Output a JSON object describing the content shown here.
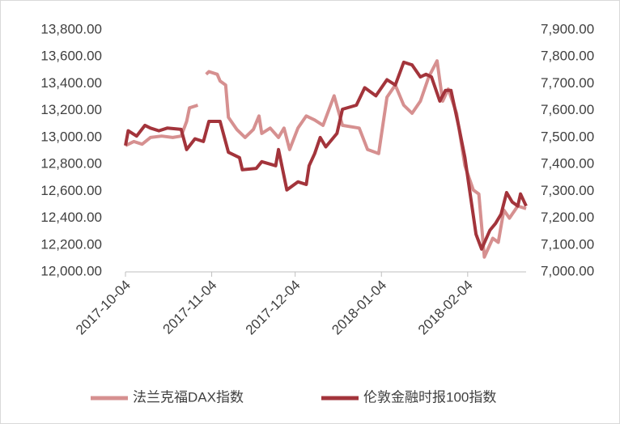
{
  "chart_data": {
    "type": "line",
    "xlim": [
      "2017-10-04",
      "2018-02-25"
    ],
    "xticks": [
      "2017-10-04",
      "2017-11-04",
      "2017-12-04",
      "2018-01-04",
      "2018-02-04"
    ],
    "ylim": [
      12000,
      13800
    ],
    "yticks": [
      {
        "value": 12000,
        "label": "12,000.00"
      },
      {
        "value": 12200,
        "label": "12,200.00"
      },
      {
        "value": 12400,
        "label": "12,400.00"
      },
      {
        "value": 12600,
        "label": "12,600.00"
      },
      {
        "value": 12800,
        "label": "12,800.00"
      },
      {
        "value": 13000,
        "label": "13,000.00"
      },
      {
        "value": 13200,
        "label": "13,200.00"
      },
      {
        "value": 13400,
        "label": "13,400.00"
      },
      {
        "value": 13600,
        "label": "13,600.00"
      },
      {
        "value": 13800,
        "label": "13,800.00"
      }
    ],
    "y2lim": [
      7000,
      7900
    ],
    "y2ticks": [
      {
        "value": 7000,
        "label": "7,000.00"
      },
      {
        "value": 7100,
        "label": "7,100.00"
      },
      {
        "value": 7200,
        "label": "7,200.00"
      },
      {
        "value": 7300,
        "label": "7,300.00"
      },
      {
        "value": 7400,
        "label": "7,400.00"
      },
      {
        "value": 7500,
        "label": "7,500.00"
      },
      {
        "value": 7600,
        "label": "7,600.00"
      },
      {
        "value": 7700,
        "label": "7,700.00"
      },
      {
        "value": 7800,
        "label": "7,800.00"
      },
      {
        "value": 7900,
        "label": "7,900.00"
      }
    ],
    "legend": "bottom",
    "series": [
      {
        "name": "法兰克福DAX指数",
        "color": "#d69090",
        "axis": "y",
        "x": [
          "2017-10-04",
          "2017-10-07",
          "2017-10-10",
          "2017-10-13",
          "2017-10-17",
          "2017-10-21",
          "2017-10-24",
          "2017-10-26",
          "2017-10-27",
          "2017-10-30",
          "2017-11-01",
          "2017-11-02",
          "2017-11-03",
          "2017-11-06",
          "2017-11-07",
          "2017-11-09",
          "2017-11-10",
          "2017-11-13",
          "2017-11-16",
          "2017-11-19",
          "2017-11-21",
          "2017-11-22",
          "2017-11-25",
          "2017-11-28",
          "2017-11-30",
          "2017-12-02",
          "2017-12-05",
          "2017-12-08",
          "2017-12-11",
          "2017-12-14",
          "2017-12-18",
          "2017-12-21",
          "2017-12-27",
          "2017-12-30",
          "2018-01-03",
          "2018-01-06",
          "2018-01-09",
          "2018-01-12",
          "2018-01-15",
          "2018-01-18",
          "2018-01-21",
          "2018-01-24",
          "2018-01-26",
          "2018-01-28",
          "2018-01-31",
          "2018-02-03",
          "2018-02-06",
          "2018-02-08",
          "2018-02-10",
          "2018-02-13",
          "2018-02-15",
          "2018-02-17",
          "2018-02-19",
          "2018-02-22",
          "2018-02-25"
        ],
        "values": [
          12940,
          12970,
          12950,
          13000,
          13010,
          13000,
          13010,
          13120,
          13220,
          13240,
          null,
          13470,
          13490,
          13470,
          13420,
          13390,
          13150,
          13060,
          13000,
          13060,
          13160,
          13030,
          13070,
          13000,
          13070,
          12910,
          13070,
          13160,
          13130,
          13090,
          13310,
          13090,
          13070,
          12910,
          12880,
          13300,
          13390,
          13240,
          13180,
          13270,
          13450,
          13570,
          13270,
          13360,
          13180,
          12790,
          12610,
          12580,
          12110,
          12250,
          12220,
          12460,
          12400,
          12490,
          12470
        ]
      },
      {
        "name": "伦敦金融时报100指数",
        "color": "#a3343b",
        "axis": "y2",
        "x": [
          "2017-10-04",
          "2017-10-05",
          "2017-10-08",
          "2017-10-11",
          "2017-10-13",
          "2017-10-16",
          "2017-10-19",
          "2017-10-24",
          "2017-10-26",
          "2017-10-29",
          "2017-11-01",
          "2017-11-03",
          "2017-11-07",
          "2017-11-10",
          "2017-11-14",
          "2017-11-15",
          "2017-11-20",
          "2017-11-22",
          "2017-11-27",
          "2017-11-28",
          "2017-12-01",
          "2017-12-05",
          "2017-12-08",
          "2017-12-09",
          "2017-12-11",
          "2017-12-13",
          "2017-12-15",
          "2017-12-19",
          "2017-12-21",
          "2017-12-26",
          "2017-12-29",
          "2018-01-02",
          "2018-01-06",
          "2018-01-09",
          "2018-01-12",
          "2018-01-15",
          "2018-01-18",
          "2018-01-20",
          "2018-01-22",
          "2018-01-25",
          "2018-01-27",
          "2018-01-29",
          "2018-02-01",
          "2018-02-03",
          "2018-02-07",
          "2018-02-09",
          "2018-02-12",
          "2018-02-14",
          "2018-02-16",
          "2018-02-18",
          "2018-02-20",
          "2018-02-22",
          "2018-02-23",
          "2018-02-25"
        ],
        "values": [
          7470,
          7525,
          7505,
          7545,
          7535,
          7525,
          7535,
          7530,
          7455,
          7495,
          7485,
          7560,
          7560,
          7445,
          7425,
          7380,
          7385,
          7410,
          7395,
          7455,
          7305,
          7335,
          7325,
          7395,
          7440,
          7500,
          7465,
          7515,
          7605,
          7620,
          7685,
          7655,
          7715,
          7695,
          7780,
          7770,
          7725,
          7735,
          7725,
          7635,
          7675,
          7675,
          7530,
          7425,
          7140,
          7085,
          7155,
          7180,
          7215,
          7295,
          7260,
          7245,
          7290,
          7245
        ]
      }
    ]
  }
}
